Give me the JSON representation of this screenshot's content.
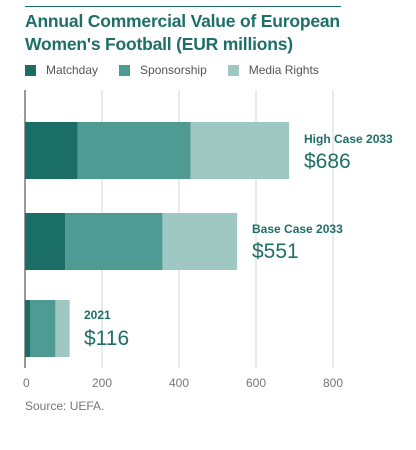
{
  "chart_data": {
    "type": "bar",
    "orientation": "horizontal",
    "stacked": true,
    "title": "Annual Commercial Value of European Women's Football (EUR millions)",
    "categories": [
      "High Case 2033",
      "Base Case 2033",
      "2021"
    ],
    "totals": [
      "$686",
      "$551",
      "$116"
    ],
    "series": [
      {
        "name": "Matchday",
        "color": "#1b6e66",
        "values": [
          137,
          104,
          13
        ]
      },
      {
        "name": "Sponsorship",
        "color": "#4f9a92",
        "values": [
          293,
          253,
          66
        ]
      },
      {
        "name": "Media Rights",
        "color": "#9fc8c3",
        "values": [
          256,
          194,
          37
        ]
      }
    ],
    "xlim": [
      0,
      800
    ],
    "xticks": [
      0,
      200,
      400,
      600,
      800
    ],
    "grid": true,
    "legend": "top-left",
    "source": "Source: UEFA."
  }
}
